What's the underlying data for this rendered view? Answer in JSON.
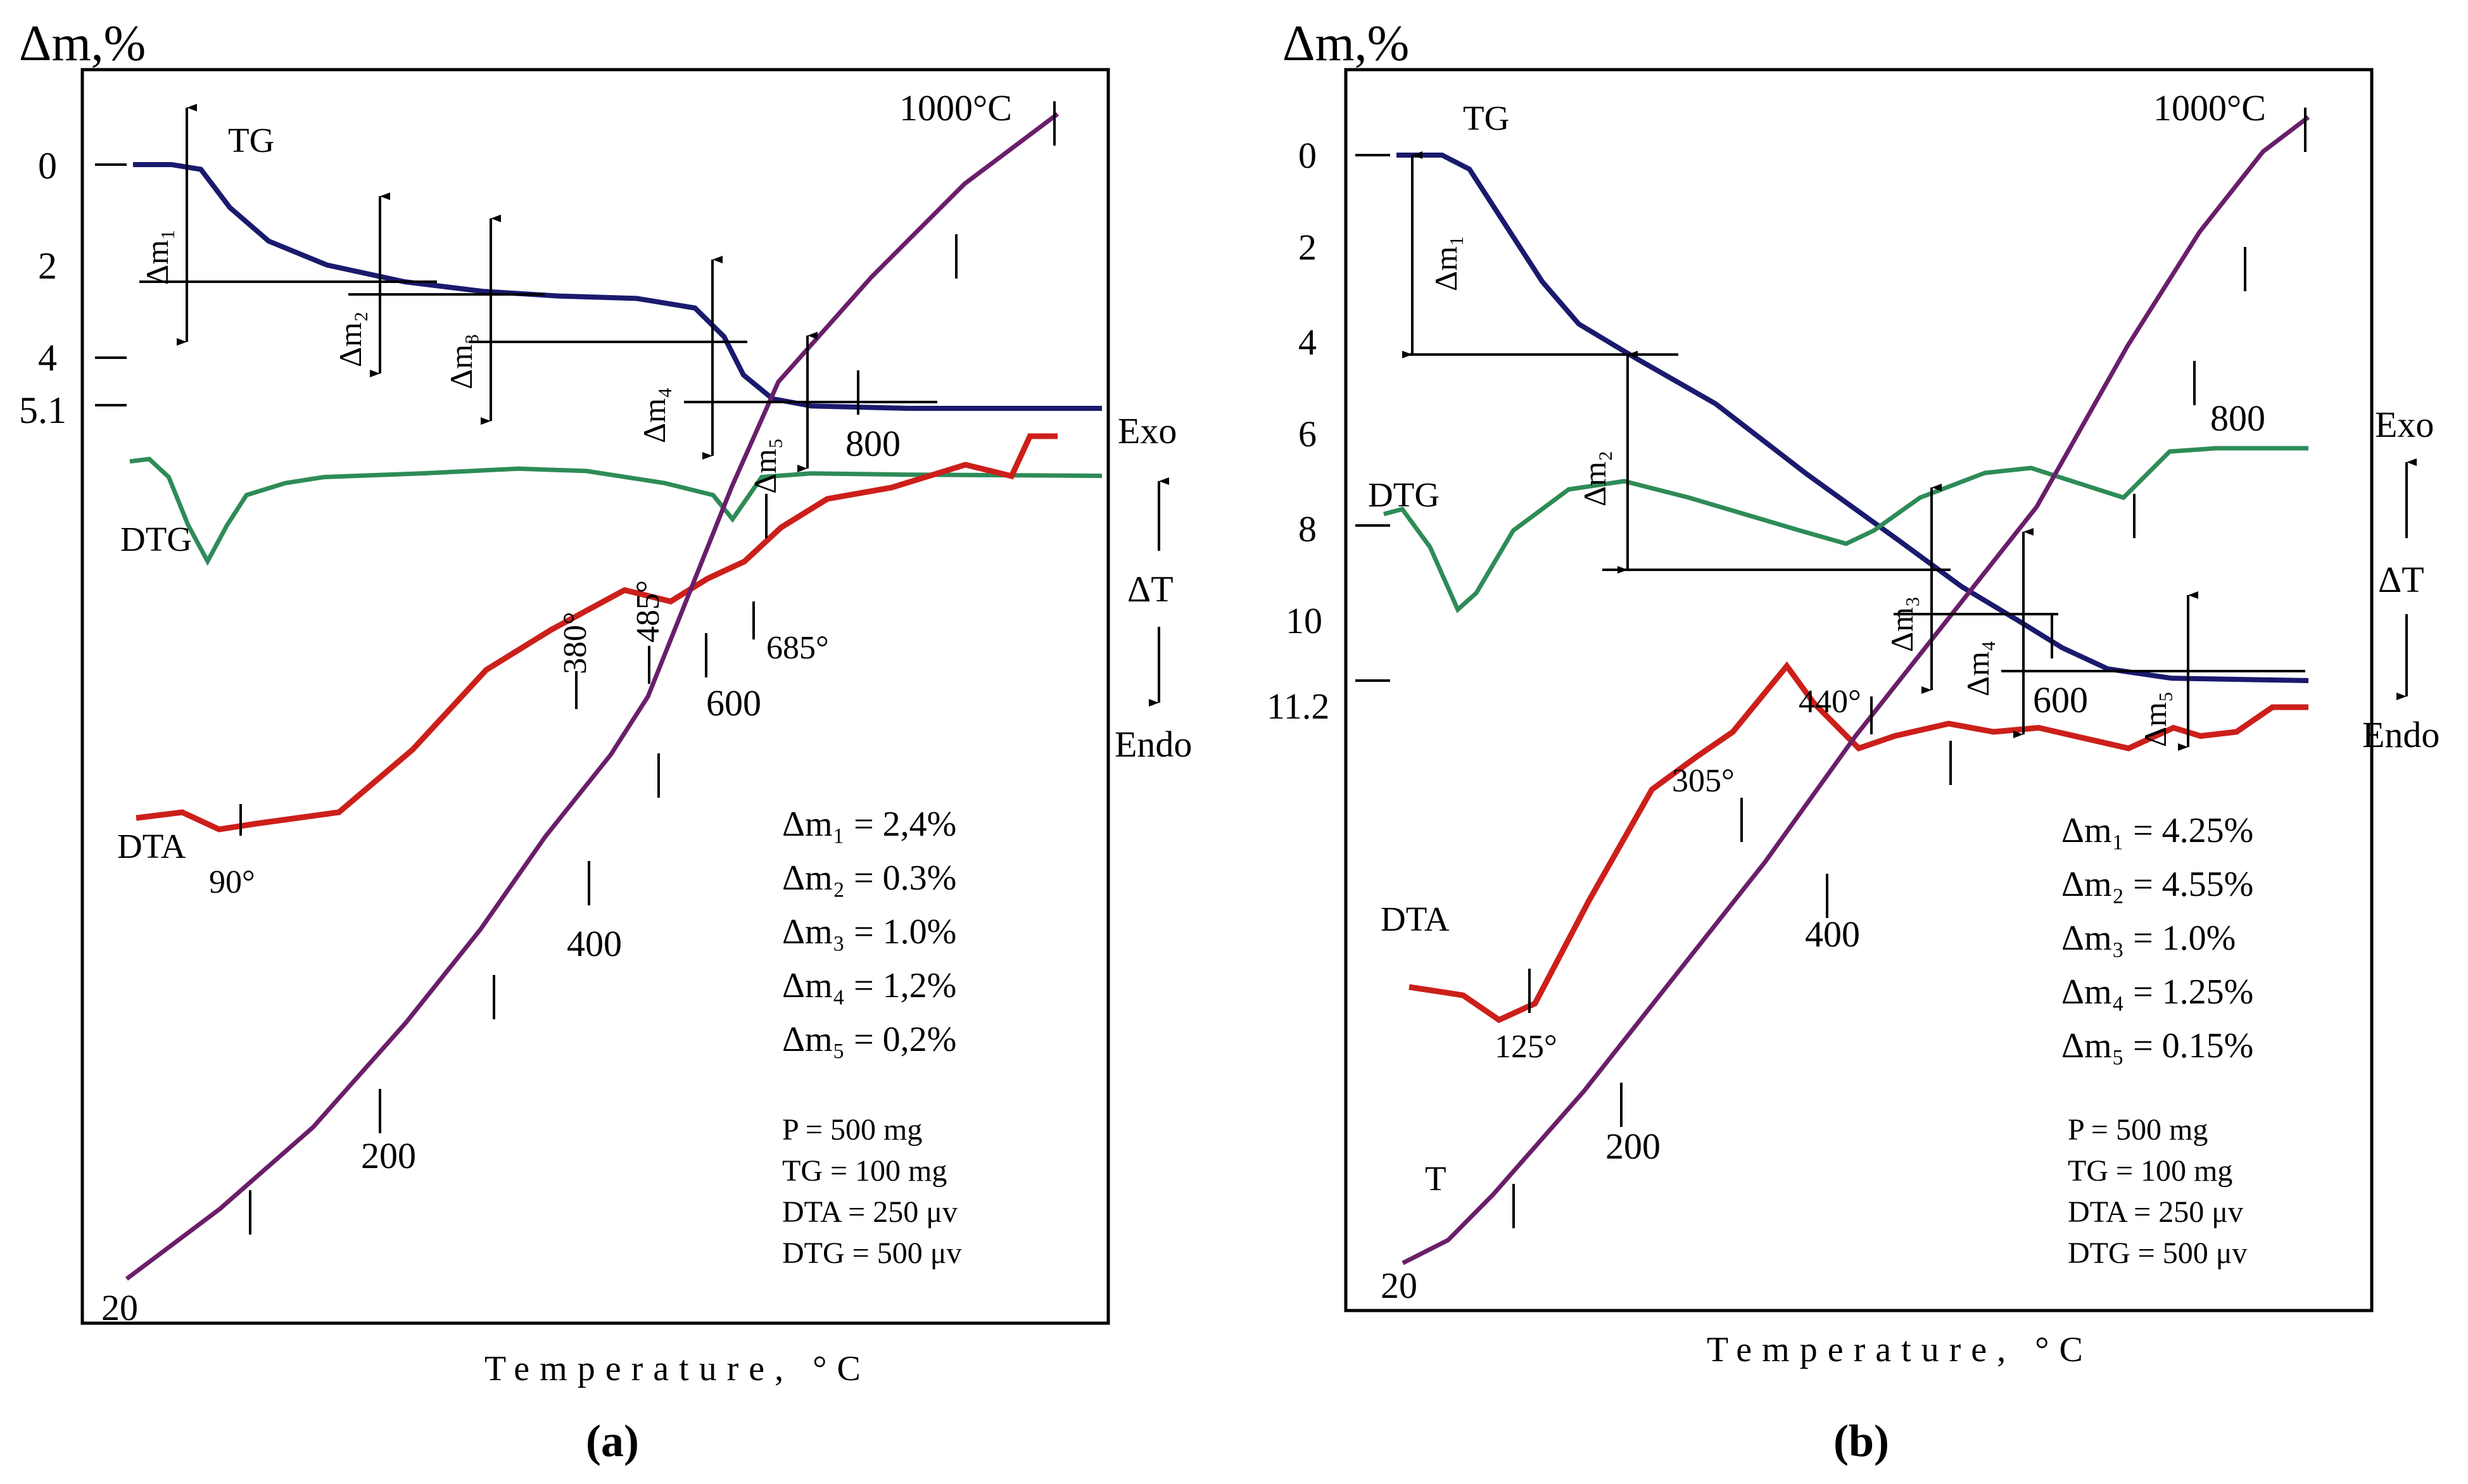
{
  "chart_data": [
    {
      "panel": "a",
      "type": "line",
      "caption": "(a)",
      "ylabel": "Δm,%",
      "xlabel": "Temperature, °C",
      "y_ticks": [
        "0",
        "2",
        "4",
        "5.1"
      ],
      "y_tick_values": [
        0,
        2,
        4,
        5.1
      ],
      "tg": [
        [
          0,
          0.0
        ],
        [
          0.04,
          0.0
        ],
        [
          0.07,
          0.1
        ],
        [
          0.1,
          0.9
        ],
        [
          0.14,
          1.6
        ],
        [
          0.2,
          2.1
        ],
        [
          0.28,
          2.45
        ],
        [
          0.36,
          2.65
        ],
        [
          0.44,
          2.75
        ],
        [
          0.52,
          2.8
        ],
        [
          0.58,
          3.0
        ],
        [
          0.61,
          3.6
        ],
        [
          0.63,
          4.4
        ],
        [
          0.66,
          4.9
        ],
        [
          0.7,
          5.05
        ],
        [
          0.8,
          5.1
        ],
        [
          1,
          5.1
        ]
      ],
      "dtg": [
        [
          0,
          0.02
        ],
        [
          0.02,
          0.0
        ],
        [
          0.04,
          0.15
        ],
        [
          0.06,
          0.55
        ],
        [
          0.08,
          0.85
        ],
        [
          0.1,
          0.55
        ],
        [
          0.12,
          0.3
        ],
        [
          0.16,
          0.2
        ],
        [
          0.2,
          0.15
        ],
        [
          0.3,
          0.12
        ],
        [
          0.4,
          0.08
        ],
        [
          0.47,
          0.1
        ],
        [
          0.55,
          0.2
        ],
        [
          0.6,
          0.3
        ],
        [
          0.62,
          0.5
        ],
        [
          0.65,
          0.15
        ],
        [
          0.7,
          0.12
        ],
        [
          0.8,
          0.13
        ],
        [
          1,
          0.14
        ]
      ],
      "dta": [
        [
          0,
          0.88
        ],
        [
          0.05,
          0.87
        ],
        [
          0.09,
          0.9
        ],
        [
          0.13,
          0.89
        ],
        [
          0.22,
          0.87
        ],
        [
          0.3,
          0.76
        ],
        [
          0.38,
          0.62
        ],
        [
          0.45,
          0.55
        ],
        [
          0.53,
          0.48
        ],
        [
          0.58,
          0.5
        ],
        [
          0.62,
          0.46
        ],
        [
          0.66,
          0.43
        ],
        [
          0.7,
          0.37
        ],
        [
          0.75,
          0.32
        ],
        [
          0.82,
          0.3
        ],
        [
          0.9,
          0.26
        ],
        [
          0.95,
          0.28
        ],
        [
          0.97,
          0.21
        ],
        [
          1,
          0.21
        ]
      ],
      "t_curve": [
        [
          0,
          0
        ],
        [
          0.1,
          0.06
        ],
        [
          0.2,
          0.13
        ],
        [
          0.3,
          0.22
        ],
        [
          0.38,
          0.3
        ],
        [
          0.45,
          0.38
        ],
        [
          0.52,
          0.45
        ],
        [
          0.56,
          0.5
        ],
        [
          0.6,
          0.58
        ],
        [
          0.65,
          0.68
        ],
        [
          0.7,
          0.77
        ],
        [
          0.8,
          0.86
        ],
        [
          0.9,
          0.94
        ],
        [
          1,
          1
        ]
      ],
      "t_marks": [
        "20",
        "200",
        "400",
        "600",
        "800",
        "1000°C"
      ],
      "dta_peaks": [
        "90°",
        "380°",
        "485°",
        "685°"
      ],
      "tg_label": "TG",
      "dtg_label": "DTG",
      "dta_label": "DTA",
      "step_labels": [
        "Δm₁",
        "Δm₂",
        "Δm₃",
        "Δm₄",
        "Δm₅"
      ],
      "mass_losses": [
        "Δm₁ = 2,4%",
        "Δm₂ = 0.3%",
        "Δm₃ = 1.0%",
        "Δm₄ = 1,2%",
        "Δm₅ = 0,2%"
      ],
      "conditions": [
        "P = 500 mg",
        "TG = 100 mg",
        "DTA = 250 μv",
        "DTG = 500 μv"
      ],
      "colors": {
        "tg": "#1a1a6e",
        "dtg": "#2e8b57",
        "dta": "#cc1f1a",
        "t": "#6a1e6a"
      }
    },
    {
      "panel": "b",
      "type": "line",
      "caption": "(b)",
      "ylabel": "Δm,%",
      "xlabel": "Temperature, °C",
      "y_ticks": [
        "0",
        "2",
        "4",
        "6",
        "8",
        "10",
        "11.2"
      ],
      "y_tick_values": [
        0,
        2,
        4,
        6,
        8,
        10,
        11.2
      ],
      "tg": [
        [
          0,
          0
        ],
        [
          0.05,
          0.0
        ],
        [
          0.08,
          0.3
        ],
        [
          0.12,
          1.5
        ],
        [
          0.16,
          2.7
        ],
        [
          0.2,
          3.6
        ],
        [
          0.26,
          4.3
        ],
        [
          0.35,
          5.3
        ],
        [
          0.45,
          6.8
        ],
        [
          0.55,
          8.2
        ],
        [
          0.62,
          9.2
        ],
        [
          0.68,
          9.9
        ],
        [
          0.73,
          10.5
        ],
        [
          0.78,
          10.95
        ],
        [
          0.85,
          11.15
        ],
        [
          1,
          11.2
        ]
      ],
      "dtg": [
        [
          0,
          0.2
        ],
        [
          0.02,
          0.17
        ],
        [
          0.05,
          0.4
        ],
        [
          0.08,
          0.78
        ],
        [
          0.1,
          0.68
        ],
        [
          0.14,
          0.3
        ],
        [
          0.2,
          0.05
        ],
        [
          0.26,
          0.0
        ],
        [
          0.33,
          0.1
        ],
        [
          0.45,
          0.3
        ],
        [
          0.5,
          0.38
        ],
        [
          0.53,
          0.3
        ],
        [
          0.58,
          0.1
        ],
        [
          0.65,
          -0.05
        ],
        [
          0.7,
          -0.08
        ],
        [
          0.8,
          0.1
        ],
        [
          0.85,
          -0.18
        ],
        [
          0.9,
          -0.2
        ],
        [
          1,
          -0.2
        ]
      ],
      "dta": [
        [
          0,
          0.66
        ],
        [
          0.06,
          0.68
        ],
        [
          0.1,
          0.74
        ],
        [
          0.14,
          0.7
        ],
        [
          0.2,
          0.45
        ],
        [
          0.27,
          0.18
        ],
        [
          0.32,
          0.1
        ],
        [
          0.36,
          0.04
        ],
        [
          0.42,
          -0.12
        ],
        [
          0.45,
          -0.03
        ],
        [
          0.5,
          0.08
        ],
        [
          0.54,
          0.05
        ],
        [
          0.6,
          0.02
        ],
        [
          0.65,
          0.04
        ],
        [
          0.7,
          0.03
        ],
        [
          0.8,
          0.08
        ],
        [
          0.85,
          0.03
        ],
        [
          0.88,
          0.05
        ],
        [
          0.92,
          0.04
        ],
        [
          0.96,
          -0.02
        ],
        [
          1,
          -0.02
        ]
      ],
      "t_curve": [
        [
          0,
          0
        ],
        [
          0.05,
          0.02
        ],
        [
          0.1,
          0.06
        ],
        [
          0.2,
          0.15
        ],
        [
          0.3,
          0.25
        ],
        [
          0.4,
          0.35
        ],
        [
          0.5,
          0.46
        ],
        [
          0.6,
          0.56
        ],
        [
          0.7,
          0.66
        ],
        [
          0.8,
          0.8
        ],
        [
          0.88,
          0.9
        ],
        [
          0.95,
          0.97
        ],
        [
          1,
          1
        ]
      ],
      "t_marks": [
        "20",
        "200",
        "400",
        "600",
        "800",
        "1000°C"
      ],
      "dta_peaks": [
        "125°",
        "305°",
        "440°"
      ],
      "tg_label": "TG",
      "dtg_label": "DTG",
      "dta_label": "DTA",
      "t_label": "T",
      "step_labels": [
        "Δm₁",
        "Δm₂",
        "Δm₃",
        "Δm₄",
        "Δm₅"
      ],
      "mass_losses": [
        "Δm₁ = 4.25%",
        "Δm₂ = 4.55%",
        "Δm₃ = 1.0%",
        "Δm₄ = 1.25%",
        "Δm₅ = 0.15%"
      ],
      "conditions": [
        "P = 500 mg",
        "TG = 100 mg",
        "DTA = 250 μv",
        "DTG = 500 μv"
      ],
      "colors": {
        "tg": "#1a1a6e",
        "dtg": "#2e8b57",
        "dta": "#cc1f1a",
        "t": "#6a1e6a"
      }
    }
  ],
  "side_scale": {
    "exo": "Exo",
    "delta_t": "ΔT",
    "endo": "Endo"
  }
}
